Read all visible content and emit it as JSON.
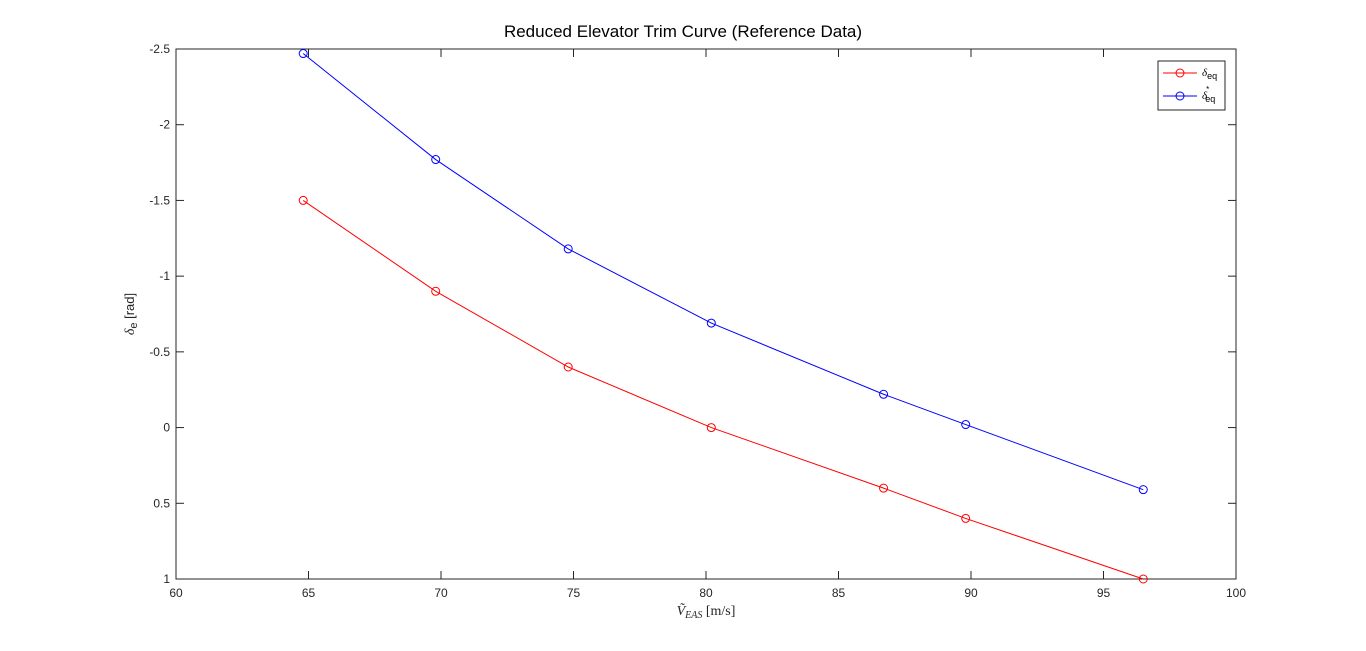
{
  "chart_data": {
    "type": "line",
    "title": "Reduced Elevator Trim Curve (Reference Data)",
    "xlabel": "Ṽ_EAS [m/s]",
    "xlabel_main": "Ṽ",
    "xlabel_sub": "EAS",
    "xlabel_unit": " [m/s]",
    "ylabel": "δ_e [rad]",
    "ylabel_main": "δ",
    "ylabel_sub": "e",
    "ylabel_unit": " [rad]",
    "xlim": [
      60,
      100
    ],
    "ylim": [
      -2.5,
      1
    ],
    "y_reversed": true,
    "x_ticks": [
      60,
      65,
      70,
      75,
      80,
      85,
      90,
      95,
      100
    ],
    "x_tick_labels": [
      "60",
      "65",
      "70",
      "75",
      "80",
      "85",
      "90",
      "95",
      "100"
    ],
    "y_ticks": [
      -2.5,
      -2,
      -1.5,
      -1,
      -0.5,
      0,
      0.5,
      1
    ],
    "y_tick_labels": [
      "-2.5",
      "-2",
      "-1.5",
      "-1",
      "-0.5",
      "0",
      "0.5",
      "1"
    ],
    "grid": false,
    "legend_position": "top-right",
    "series": [
      {
        "name": "δ_eq",
        "legend_main": "δ",
        "legend_sub": "eq",
        "legend_sup": "",
        "color": "#ff0000",
        "marker": "circle",
        "x": [
          64.8,
          69.8,
          74.8,
          80.2,
          86.7,
          89.8,
          96.5
        ],
        "y": [
          -1.5,
          -0.9,
          -0.4,
          0.0,
          0.4,
          0.6,
          1.0
        ]
      },
      {
        "name": "δ*_eq",
        "legend_main": "δ",
        "legend_sub": "eq",
        "legend_sup": "*",
        "color": "#0000ff",
        "marker": "circle",
        "x": [
          64.8,
          69.8,
          74.8,
          80.2,
          86.7,
          89.8,
          96.5
        ],
        "y": [
          -2.47,
          -1.77,
          -1.18,
          -0.69,
          -0.22,
          -0.02,
          0.41
        ]
      }
    ]
  }
}
